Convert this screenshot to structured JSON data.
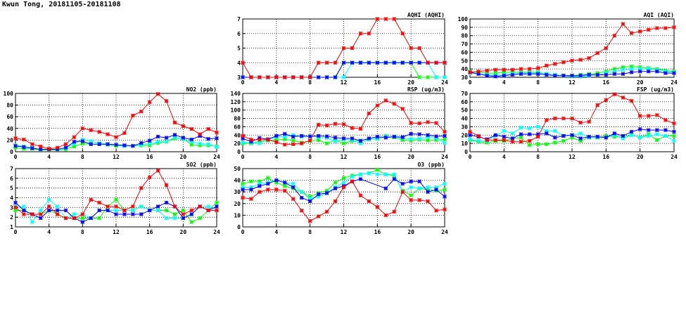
{
  "title": "Kwun Tong, 20181105-20181108",
  "chart_data": [
    {
      "type": "line",
      "id": "aqhi",
      "title": "AQHI (AQHI)",
      "ylim": [
        3,
        7
      ],
      "ystep": 1,
      "xlim": [
        0,
        24
      ],
      "xstep": 4,
      "grid": true,
      "series": [
        {
          "color": "#00ff00",
          "values": [
            3,
            3,
            3,
            3,
            3,
            3,
            3,
            3,
            3,
            3,
            3,
            3,
            4,
            4,
            4,
            4,
            4,
            4,
            4,
            4,
            4,
            3,
            3,
            3,
            3
          ]
        },
        {
          "color": "#00ffff",
          "values": [
            3,
            3,
            3,
            3,
            3,
            3,
            3,
            3,
            3,
            3,
            3,
            3,
            3,
            4,
            4,
            4,
            4,
            4,
            4,
            4,
            4,
            4,
            4,
            3,
            3
          ]
        },
        {
          "color": "#0000ff",
          "values": [
            3,
            3,
            3,
            3,
            3,
            3,
            3,
            3,
            3,
            3,
            3,
            3,
            4,
            4,
            4,
            4,
            4,
            4,
            4,
            4,
            4,
            4,
            4,
            4,
            4
          ]
        },
        {
          "color": "#ff0000",
          "values": [
            4,
            3,
            3,
            3,
            3,
            3,
            3,
            3,
            3,
            4,
            4,
            4,
            5,
            5,
            6,
            6,
            7,
            7,
            7,
            6,
            5,
            5,
            4,
            4,
            4
          ]
        }
      ]
    },
    {
      "type": "line",
      "id": "aqi",
      "title": "AQI (AQI)",
      "ylim": [
        30,
        100
      ],
      "ystep": 10,
      "xlim": [
        0,
        24
      ],
      "xstep": 4,
      "grid": true,
      "series": [
        {
          "color": "#00ff00",
          "values": [
            37,
            36,
            35,
            35,
            36,
            36,
            36,
            36,
            36,
            34,
            33,
            32,
            32,
            33,
            34,
            35,
            37,
            40,
            42,
            43,
            42,
            41,
            40,
            38,
            37
          ]
        },
        {
          "color": "#00ffff",
          "values": [
            35,
            34,
            33,
            32,
            33,
            34,
            35,
            35,
            35,
            34,
            33,
            32,
            31,
            31,
            32,
            33,
            35,
            37,
            39,
            40,
            40,
            40,
            39,
            37,
            36
          ]
        },
        {
          "color": "#0000ff",
          "values": [
            36,
            34,
            32,
            31,
            32,
            33,
            34,
            34,
            34,
            33,
            32,
            32,
            32,
            32,
            33,
            33,
            33,
            34,
            34,
            36,
            37,
            37,
            37,
            35,
            35
          ]
        },
        {
          "color": "#ff0000",
          "values": [
            36,
            37,
            38,
            39,
            39,
            39,
            40,
            40,
            41,
            44,
            46,
            48,
            50,
            51,
            53,
            59,
            65,
            80,
            94,
            83,
            85,
            87,
            89,
            89,
            90
          ]
        }
      ]
    },
    {
      "type": "line",
      "id": "no2",
      "title": "NO2 (ppb)",
      "ylim": [
        0,
        100
      ],
      "ystep": 20,
      "xlim": [
        0,
        24
      ],
      "xstep": 4,
      "grid": true,
      "series": [
        {
          "color": "#00ff00",
          "values": [
            7,
            5,
            5,
            3,
            3,
            3,
            4,
            9,
            14,
            13,
            13,
            12,
            10,
            10,
            10,
            11,
            11,
            15,
            17,
            23,
            23,
            12,
            11,
            11,
            9
          ]
        },
        {
          "color": "#00ffff",
          "values": [
            11,
            9,
            7,
            4,
            4,
            4,
            6,
            14,
            21,
            18,
            15,
            13,
            12,
            10,
            10,
            12,
            14,
            17,
            17,
            25,
            21,
            17,
            14,
            13,
            8
          ]
        },
        {
          "color": "#0000ff",
          "values": [
            10,
            8,
            6,
            4,
            4,
            4,
            7,
            17,
            18,
            13,
            13,
            13,
            12,
            11,
            10,
            15,
            19,
            26,
            24,
            29,
            24,
            21,
            27,
            22,
            23
          ]
        },
        {
          "color": "#ff0000",
          "values": [
            23,
            21,
            13,
            9,
            5,
            7,
            13,
            25,
            40,
            37,
            34,
            30,
            25,
            32,
            62,
            69,
            85,
            99,
            87,
            50,
            44,
            39,
            30,
            39,
            33
          ]
        }
      ]
    },
    {
      "type": "line",
      "id": "rsp",
      "title": "RSP (ug/m3)",
      "ylim": [
        0,
        140
      ],
      "ystep": 20,
      "xlim": [
        0,
        24
      ],
      "xstep": 4,
      "grid": true,
      "series": [
        {
          "color": "#00ff00",
          "values": [
            20,
            20,
            25,
            27,
            28,
            30,
            27,
            22,
            26,
            28,
            20,
            28,
            20,
            26,
            27,
            30,
            31,
            38,
            35,
            28,
            27,
            29,
            27,
            28,
            30
          ]
        },
        {
          "color": "#00ffff",
          "values": [
            22,
            22,
            20,
            29,
            36,
            36,
            40,
            36,
            37,
            35,
            33,
            25,
            30,
            28,
            20,
            30,
            32,
            36,
            36,
            33,
            31,
            31,
            35,
            33,
            21
          ]
        },
        {
          "color": "#0000ff",
          "values": [
            32,
            24,
            33,
            30,
            38,
            43,
            36,
            38,
            37,
            38,
            37,
            34,
            32,
            32,
            26,
            32,
            36,
            34,
            36,
            35,
            43,
            42,
            40,
            37,
            38
          ]
        },
        {
          "color": "#ff0000",
          "values": [
            38,
            29,
            29,
            29,
            23,
            17,
            18,
            20,
            27,
            65,
            63,
            67,
            66,
            57,
            55,
            92,
            111,
            123,
            115,
            103,
            69,
            68,
            71,
            69,
            48
          ]
        }
      ]
    },
    {
      "type": "line",
      "id": "fsp",
      "title": "FSP (ug/m3)",
      "ylim": [
        0,
        70
      ],
      "ystep": 10,
      "xlim": [
        0,
        24
      ],
      "xstep": 4,
      "grid": true,
      "series": [
        {
          "color": "#00ff00",
          "values": [
            14,
            12,
            11,
            13,
            13,
            16,
            17,
            8,
            9,
            9,
            11,
            13,
            17,
            13,
            17,
            17,
            19,
            18,
            18,
            20,
            17,
            21,
            14,
            19,
            19
          ]
        },
        {
          "color": "#00ffff",
          "values": [
            15,
            13,
            13,
            19,
            25,
            22,
            29,
            28,
            30,
            25,
            25,
            19,
            20,
            22,
            17,
            17,
            17,
            20,
            16,
            20,
            17,
            19,
            21,
            19,
            13
          ]
        },
        {
          "color": "#0000ff",
          "values": [
            20,
            18,
            15,
            20,
            18,
            16,
            21,
            21,
            21,
            22,
            17,
            19,
            20,
            16,
            18,
            18,
            17,
            22,
            19,
            24,
            27,
            26,
            26,
            26,
            24
          ]
        },
        {
          "color": "#ff0000",
          "values": [
            24,
            19,
            14,
            14,
            14,
            12,
            12,
            13,
            18,
            38,
            40,
            40,
            40,
            35,
            36,
            56,
            62,
            69,
            65,
            61,
            43,
            43,
            44,
            38,
            34
          ]
        }
      ]
    },
    {
      "type": "line",
      "id": "so2",
      "title": "SO2 (ppb)",
      "ylim": [
        1,
        7
      ],
      "ystep": 1,
      "xlim": [
        0,
        24
      ],
      "xstep": 4,
      "grid": true,
      "series": [
        {
          "color": "#00ff00",
          "values": [
            2.7,
            2.7,
            2.3,
            2.3,
            2.7,
            2.3,
            1.9,
            1.9,
            1.9,
            1.9,
            1.9,
            3.1,
            3.8,
            2.7,
            2.7,
            3.1,
            2.7,
            2.7,
            2.7,
            2.3,
            2.7,
            1.5,
            1.9,
            2.7,
            3.5
          ]
        },
        {
          "color": "#00ffff",
          "values": [
            3.1,
            3.1,
            1.5,
            2.7,
            3.8,
            3.1,
            1.9,
            2.3,
            2.3,
            1.9,
            2.7,
            2.7,
            2.7,
            2.7,
            2.7,
            3.1,
            2.7,
            2.7,
            1.9,
            1.9,
            1.9,
            2.3,
            3.1,
            3.1,
            2.7
          ]
        },
        {
          "color": "#0000ff",
          "values": [
            3.5,
            2.7,
            2.3,
            1.9,
            2.7,
            2.7,
            2.7,
            1.9,
            1.5,
            1.9,
            2.7,
            2.7,
            2.3,
            2.3,
            2.3,
            2.3,
            2.7,
            3.1,
            3.5,
            3.1,
            1.9,
            2.3,
            3.1,
            2.7,
            3.1
          ]
        },
        {
          "color": "#ff0000",
          "values": [
            3.0,
            2.3,
            2.3,
            2.3,
            3.1,
            2.3,
            1.9,
            1.9,
            2.3,
            3.8,
            3.5,
            3.1,
            3.1,
            2.7,
            3.1,
            5.0,
            6.1,
            6.8,
            5.3,
            3.1,
            2.3,
            2.7,
            3.1,
            2.7,
            2.7
          ]
        }
      ]
    },
    {
      "type": "line",
      "id": "o3",
      "title": "O3 (ppb)",
      "ylim": [
        0,
        50
      ],
      "ystep": 10,
      "xlim": [
        0,
        24
      ],
      "xstep": 4,
      "grid": true,
      "series": [
        {
          "color": "#00ff00",
          "values": [
            37,
            39,
            39,
            42,
            38,
            35,
            33,
            30,
            26,
            29,
            31,
            38,
            42,
            44,
            45,
            46,
            49,
            45,
            44,
            31,
            27,
            33,
            32,
            31,
            32
          ]
        },
        {
          "color": "#00ffff",
          "values": [
            34,
            34,
            37,
            38,
            40,
            38,
            37,
            30,
            24,
            26,
            29,
            34,
            38,
            43,
            45,
            46,
            45,
            45,
            45,
            30,
            34,
            33,
            34,
            34,
            37
          ]
        },
        {
          "color": "#0000ff",
          "values": [
            32,
            32,
            35,
            37,
            40,
            38,
            34,
            25,
            22,
            28,
            29,
            33,
            35,
            39,
            41,
            null,
            null,
            33,
            41,
            37,
            39,
            39,
            30,
            32,
            26
          ]
        },
        {
          "color": "#ff0000",
          "values": [
            25,
            24,
            30,
            32,
            32,
            31,
            24,
            14,
            5,
            9,
            13,
            22,
            34,
            39,
            27,
            22,
            17,
            10,
            13,
            30,
            23,
            23,
            22,
            14,
            15
          ]
        }
      ]
    }
  ]
}
